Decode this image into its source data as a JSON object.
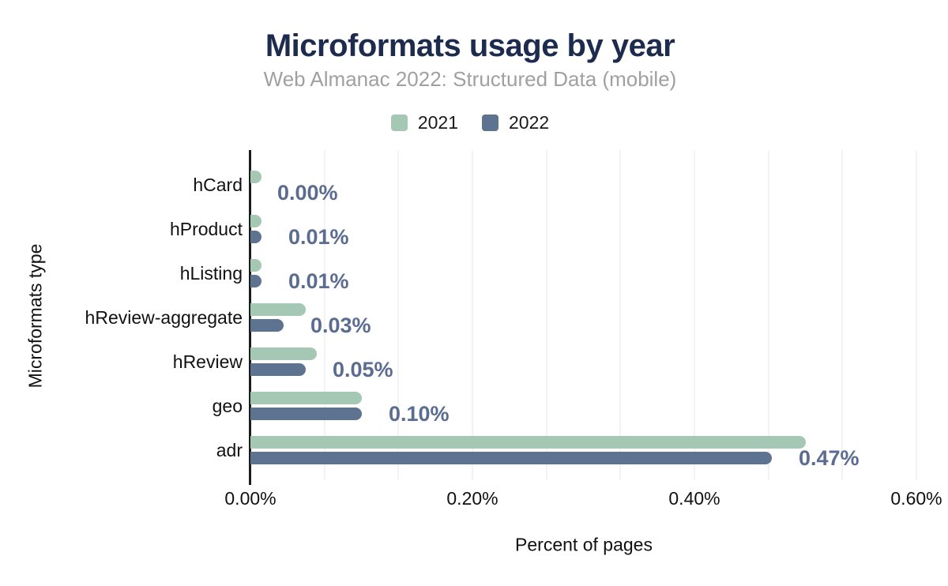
{
  "header": {
    "title": "Microformats usage by year",
    "subtitle": "Web Almanac 2022: Structured Data (mobile)"
  },
  "legend": [
    {
      "label": "2021",
      "color": "#a5c8b4"
    },
    {
      "label": "2022",
      "color": "#5e7390"
    }
  ],
  "colors": {
    "title": "#1c2b4e",
    "subtitle": "#a0a0a0",
    "series_2021": "#a5c8b4",
    "series_2022": "#5e7390",
    "data_label": "#5a6c92",
    "gridline": "#f3f3f3",
    "axis": "#1c1c1c"
  },
  "chart_data": {
    "type": "bar",
    "orientation": "horizontal",
    "title": "Microformats usage by year",
    "subtitle": "Web Almanac 2022: Structured Data (mobile)",
    "categories": [
      "hCard",
      "hProduct",
      "hListing",
      "hReview-aggregate",
      "hReview",
      "geo",
      "adr"
    ],
    "series": [
      {
        "name": "2021",
        "color": "#a5c8b4",
        "values": [
          0.01,
          0.01,
          0.01,
          0.05,
          0.06,
          0.1,
          0.5
        ]
      },
      {
        "name": "2022",
        "color": "#5e7390",
        "values": [
          0.0,
          0.01,
          0.01,
          0.03,
          0.05,
          0.1,
          0.47
        ]
      }
    ],
    "data_labels": [
      "0.00%",
      "0.01%",
      "0.01%",
      "0.03%",
      "0.05%",
      "0.10%",
      "0.47%"
    ],
    "data_label_series": "2022",
    "xlabel": "Percent of pages",
    "ylabel": "Microformats type",
    "x_ticks": [
      "0.00%",
      "0.20%",
      "0.40%",
      "0.60%"
    ],
    "x_tick_values": [
      0.0,
      0.2,
      0.4,
      0.6
    ],
    "xlim": [
      0,
      0.6
    ],
    "grid": "vertical",
    "gridline_intervals": 9,
    "legend_position": "top-center"
  }
}
